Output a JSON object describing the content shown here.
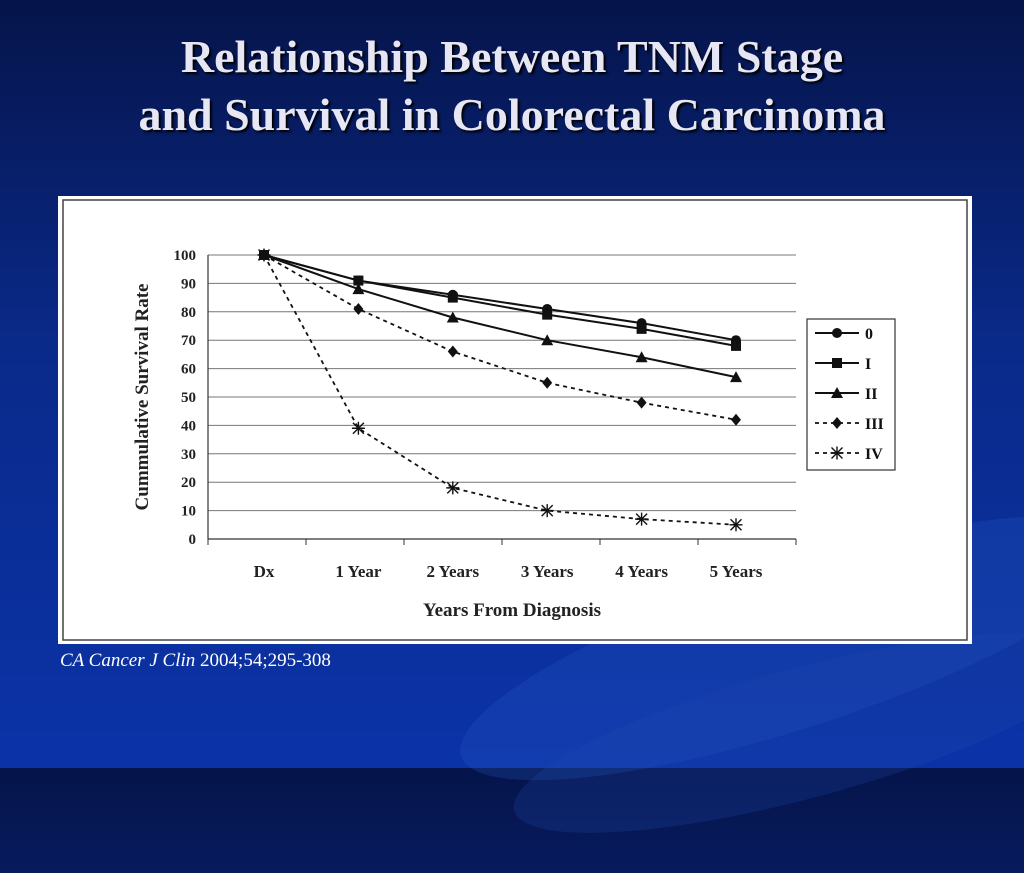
{
  "slide": {
    "title_line1": "Relationship Between TNM Stage",
    "title_line2": "and Survival in Colorectal Carcinoma",
    "citation_journal": "CA Cancer J Clin",
    "citation_ref": " 2004;54;295-308"
  },
  "chart_data": {
    "type": "line",
    "xlabel": "Years From Diagnosis",
    "ylabel": "Cummulative Survival Rate",
    "categories": [
      "Dx",
      "1 Year",
      "2 Years",
      "3 Years",
      "4 Years",
      "5 Years"
    ],
    "ylim": [
      0,
      100
    ],
    "yticks": [
      0,
      10,
      20,
      30,
      40,
      50,
      60,
      70,
      80,
      90,
      100
    ],
    "grid": true,
    "legend_position": "right",
    "series": [
      {
        "name": "0",
        "values": [
          100,
          91,
          86,
          81,
          76,
          70
        ],
        "marker": "circle",
        "dash": false
      },
      {
        "name": "I",
        "values": [
          100,
          91,
          85,
          79,
          74,
          68
        ],
        "marker": "square",
        "dash": false
      },
      {
        "name": "II",
        "values": [
          100,
          88,
          78,
          70,
          64,
          57
        ],
        "marker": "triangle",
        "dash": false
      },
      {
        "name": "III",
        "values": [
          100,
          81,
          66,
          55,
          48,
          42
        ],
        "marker": "diamond",
        "dash": true
      },
      {
        "name": "IV",
        "values": [
          100,
          39,
          18,
          10,
          7,
          5
        ],
        "marker": "asterisk",
        "dash": true
      }
    ]
  }
}
